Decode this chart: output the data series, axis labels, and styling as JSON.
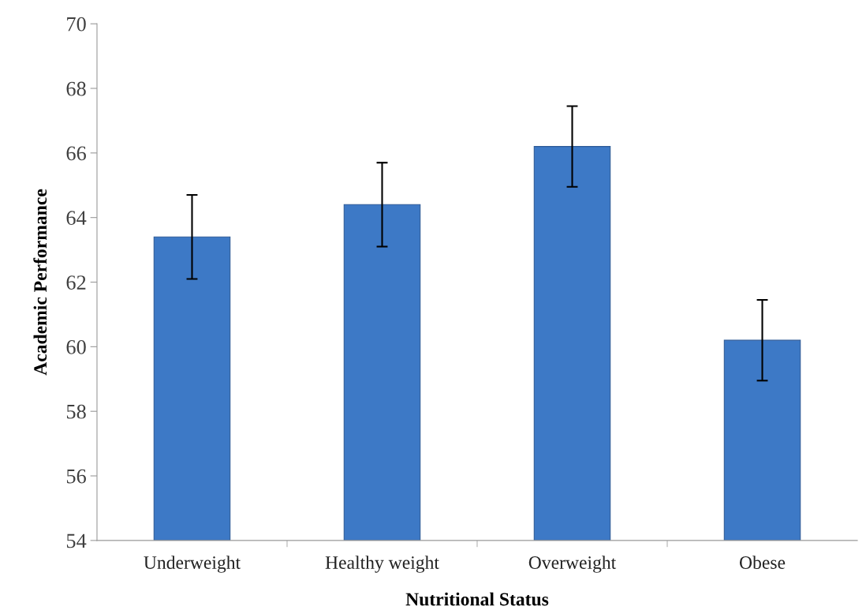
{
  "chart_data": {
    "type": "bar",
    "xlabel": "Nutritional Status",
    "ylabel": "Academic Performance",
    "categories": [
      "Underweight",
      "Healthy weight",
      "Overweight",
      "Obese"
    ],
    "values": [
      63.4,
      64.4,
      66.2,
      60.2
    ],
    "errors": [
      1.3,
      1.3,
      1.25,
      1.25
    ],
    "color": "#3d79c6",
    "ylim": [
      54,
      70
    ],
    "yticks": [
      54,
      56,
      58,
      60,
      62,
      64,
      66,
      68,
      70
    ],
    "grid": false
  }
}
